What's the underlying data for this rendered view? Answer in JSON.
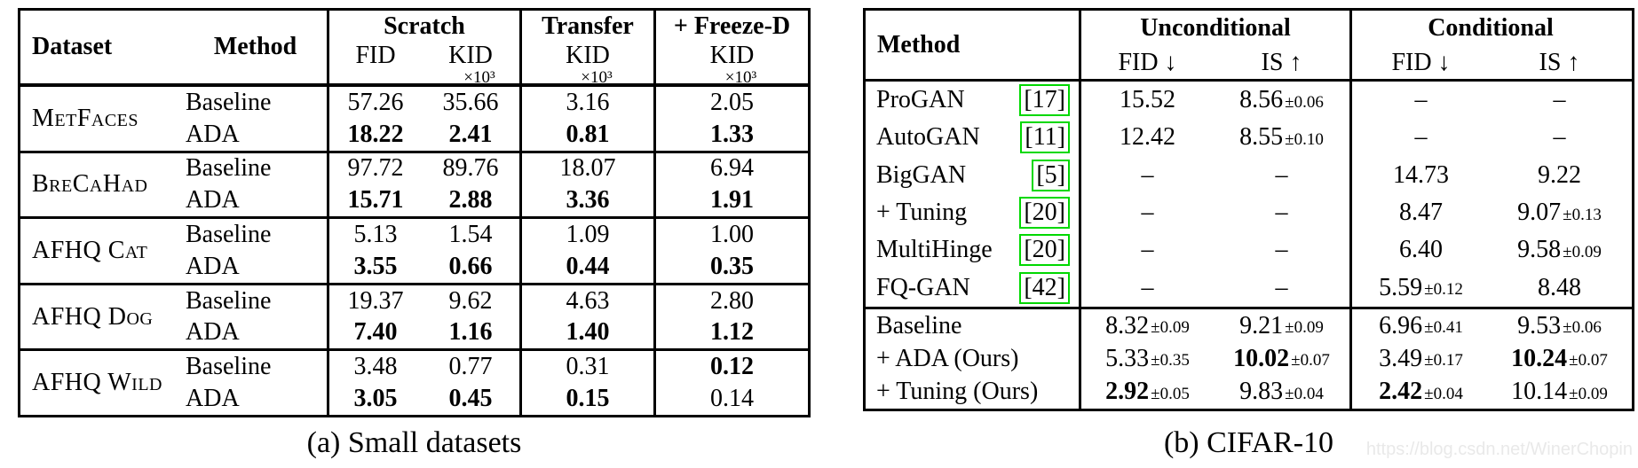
{
  "watermark": {
    "text": "https://blog.csdn.net/WinerChopin",
    "color": "#e9e9e9"
  },
  "colors": {
    "cite_box_green": "#00d800",
    "text": "#000000",
    "lines": "#000000"
  },
  "table_a": {
    "caption": "(a) Small datasets",
    "header": {
      "dataset": "Dataset",
      "method": "Method",
      "group_scratch": "Scratch",
      "group_transfer": "Transfer",
      "group_freezed": "+ Freeze-D",
      "fid": "FID",
      "kid": "KID",
      "times_1e3": "×10³"
    },
    "groups": [
      {
        "dataset": "MetFaces",
        "rows": [
          {
            "method": "Baseline",
            "values": [
              "57.26",
              "35.66",
              "3.16",
              "2.05"
            ],
            "bold": [
              false,
              false,
              false,
              false
            ]
          },
          {
            "method": "ADA",
            "values": [
              "18.22",
              "2.41",
              "0.81",
              "1.33"
            ],
            "bold": [
              true,
              true,
              true,
              true
            ]
          }
        ]
      },
      {
        "dataset": "BreCaHad",
        "rows": [
          {
            "method": "Baseline",
            "values": [
              "97.72",
              "89.76",
              "18.07",
              "6.94"
            ],
            "bold": [
              false,
              false,
              false,
              false
            ]
          },
          {
            "method": "ADA",
            "values": [
              "15.71",
              "2.88",
              "3.36",
              "1.91"
            ],
            "bold": [
              true,
              true,
              true,
              true
            ]
          }
        ]
      },
      {
        "dataset": "AFHQ Cat",
        "rows": [
          {
            "method": "Baseline",
            "values": [
              "5.13",
              "1.54",
              "1.09",
              "1.00"
            ],
            "bold": [
              false,
              false,
              false,
              false
            ]
          },
          {
            "method": "ADA",
            "values": [
              "3.55",
              "0.66",
              "0.44",
              "0.35"
            ],
            "bold": [
              true,
              true,
              true,
              true
            ]
          }
        ]
      },
      {
        "dataset": "AFHQ Dog",
        "rows": [
          {
            "method": "Baseline",
            "values": [
              "19.37",
              "9.62",
              "4.63",
              "2.80"
            ],
            "bold": [
              false,
              false,
              false,
              false
            ]
          },
          {
            "method": "ADA",
            "values": [
              "7.40",
              "1.16",
              "1.40",
              "1.12"
            ],
            "bold": [
              true,
              true,
              true,
              true
            ]
          }
        ]
      },
      {
        "dataset": "AFHQ Wild",
        "rows": [
          {
            "method": "Baseline",
            "values": [
              "3.48",
              "0.77",
              "0.31",
              "0.12"
            ],
            "bold": [
              false,
              false,
              false,
              true
            ]
          },
          {
            "method": "ADA",
            "values": [
              "3.05",
              "0.45",
              "0.15",
              "0.14"
            ],
            "bold": [
              true,
              true,
              true,
              false
            ]
          }
        ]
      }
    ]
  },
  "table_b": {
    "caption": "(b) CIFAR-10",
    "header": {
      "method": "Method",
      "group_unconditional": "Unconditional",
      "group_conditional": "Conditional",
      "fid_down": "FID ↓",
      "is_up": "IS ↑"
    },
    "cited_rows": [
      {
        "method": "ProGAN",
        "cite": "[17]",
        "cells": [
          {
            "v": "15.52"
          },
          {
            "v": "8.56",
            "pm": "±0.06"
          },
          {
            "v": "–"
          },
          {
            "v": "–"
          }
        ]
      },
      {
        "method": "AutoGAN",
        "cite": "[11]",
        "cells": [
          {
            "v": "12.42"
          },
          {
            "v": "8.55",
            "pm": "±0.10"
          },
          {
            "v": "–"
          },
          {
            "v": "–"
          }
        ]
      },
      {
        "method": "BigGAN",
        "cite": "[5]",
        "cells": [
          {
            "v": "–"
          },
          {
            "v": "–"
          },
          {
            "v": "14.73"
          },
          {
            "v": "9.22"
          }
        ]
      },
      {
        "method": "+ Tuning",
        "cite": "[20]",
        "cells": [
          {
            "v": "–"
          },
          {
            "v": "–"
          },
          {
            "v": "8.47"
          },
          {
            "v": "9.07",
            "pm": "±0.13"
          }
        ]
      },
      {
        "method": "MultiHinge",
        "cite": "[20]",
        "cells": [
          {
            "v": "–"
          },
          {
            "v": "–"
          },
          {
            "v": "6.40"
          },
          {
            "v": "9.58",
            "pm": "±0.09"
          }
        ]
      },
      {
        "method": "FQ-GAN",
        "cite": "[42]",
        "cells": [
          {
            "v": "–"
          },
          {
            "v": "–"
          },
          {
            "v": "5.59",
            "pm": "±0.12"
          },
          {
            "v": "8.48"
          }
        ]
      }
    ],
    "ours_rows": [
      {
        "method": "Baseline",
        "cells": [
          {
            "v": "8.32",
            "pm": "±0.09"
          },
          {
            "v": "9.21",
            "pm": "±0.09"
          },
          {
            "v": "6.96",
            "pm": "±0.41"
          },
          {
            "v": "9.53",
            "pm": "±0.06"
          }
        ]
      },
      {
        "method": "+ ADA (Ours)",
        "cells": [
          {
            "v": "5.33",
            "pm": "±0.35"
          },
          {
            "v": "10.02",
            "pm": "±0.07",
            "b": true
          },
          {
            "v": "3.49",
            "pm": "±0.17"
          },
          {
            "v": "10.24",
            "pm": "±0.07",
            "b": true
          }
        ]
      },
      {
        "method": "+ Tuning (Ours)",
        "cells": [
          {
            "v": "2.92",
            "pm": "±0.05",
            "b": true
          },
          {
            "v": "9.83",
            "pm": "±0.04"
          },
          {
            "v": "2.42",
            "pm": "±0.04",
            "b": true
          },
          {
            "v": "10.14",
            "pm": "±0.09"
          }
        ]
      }
    ]
  }
}
